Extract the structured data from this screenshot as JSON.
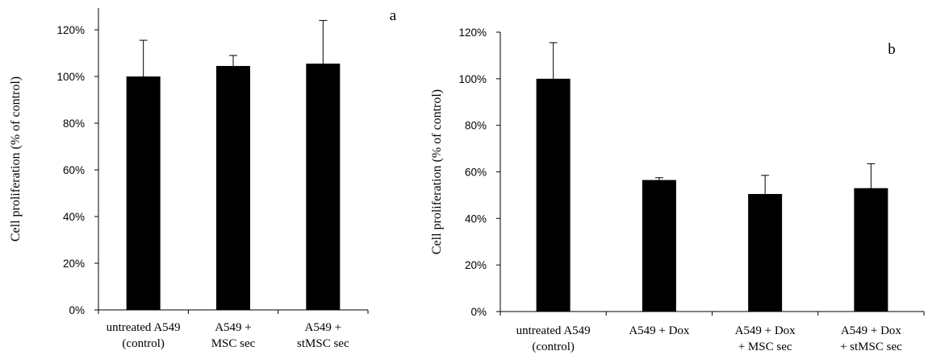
{
  "chart_data": [
    {
      "type": "bar",
      "panel_label": "a",
      "ylabel": "Cell proliferation (% of control)",
      "ylim": [
        0,
        120
      ],
      "yticks": [
        "0%",
        "20%",
        "40%",
        "60%",
        "80%",
        "100%",
        "120%"
      ],
      "categories": [
        [
          "untreated A549",
          "(control)"
        ],
        [
          "A549 +",
          "MSC sec"
        ],
        [
          "A549 +",
          "stMSC sec"
        ]
      ],
      "values": [
        100,
        104.5,
        105.5
      ],
      "errors": [
        15.5,
        4.5,
        18.5
      ],
      "bar_color": "#000000",
      "grid": false
    },
    {
      "type": "bar",
      "panel_label": "b",
      "ylabel": "Cell proliferation (% of control)",
      "ylim": [
        0,
        120
      ],
      "yticks": [
        "0%",
        "20%",
        "40%",
        "60%",
        "80%",
        "100%",
        "120%"
      ],
      "categories": [
        [
          "untreated A549",
          "(control)"
        ],
        [
          "A549 + Dox"
        ],
        [
          "A549 + Dox",
          "+ MSC sec"
        ],
        [
          "A549 + Dox",
          "+ stMSC sec"
        ]
      ],
      "values": [
        100,
        56.5,
        50.5,
        53
      ],
      "errors": [
        15.5,
        1,
        8,
        10.5
      ],
      "bar_color": "#000000",
      "grid": false
    }
  ]
}
